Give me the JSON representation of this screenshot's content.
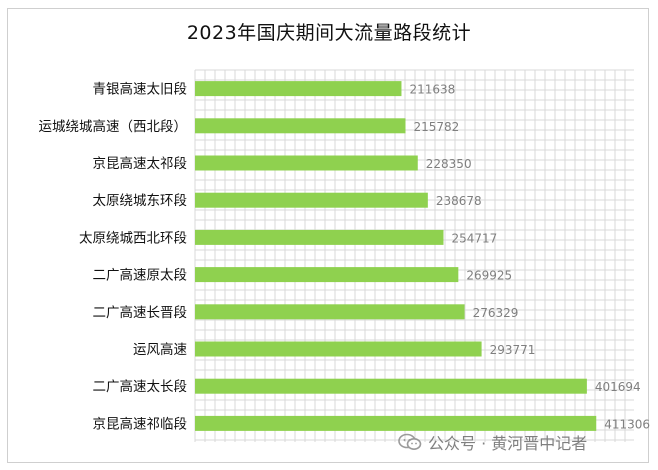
{
  "chart_data": {
    "type": "bar",
    "orientation": "horizontal",
    "title": "2023年国庆期间大流量路段统计",
    "categories": [
      "青银高速太旧段",
      "运城绕城高速（西北段）",
      "京昆高速太祁段",
      "太原绕城东环段",
      "太原绕城西北环段",
      "二广高速原太段",
      "二广高速长晋段",
      "运风高速",
      "二广高速太长段",
      "京昆高速祁临段"
    ],
    "values": [
      211638,
      215782,
      228350,
      238678,
      254717,
      269925,
      276329,
      293771,
      401694,
      411306
    ],
    "xlim": [
      0,
      450000
    ],
    "grid": true,
    "bar_color": "#8fd14f",
    "label_color": "#7f7f7f",
    "grid_color": "#d9d9d9"
  },
  "watermark": {
    "text": "公众号 · 黄河晋中记者",
    "icon": "wechat-icon"
  }
}
